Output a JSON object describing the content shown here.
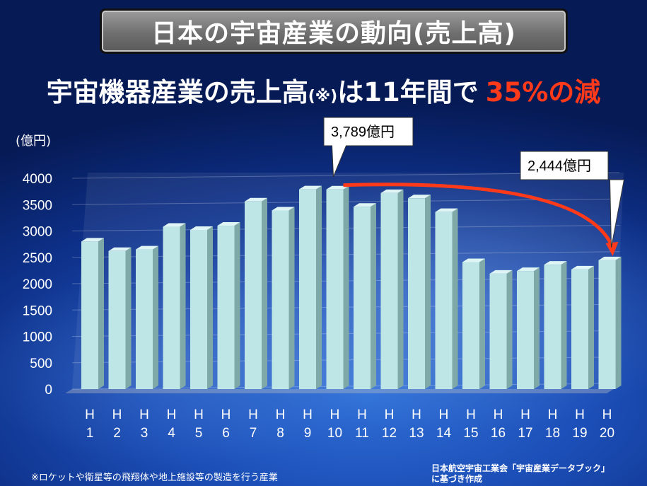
{
  "title": "日本の宇宙産業の動向(売上高)",
  "headline": {
    "main": "宇宙機器産業の売上高",
    "note_mark": "(※)",
    "mid": "は11年間で",
    "highlight": "35%の減"
  },
  "footnote": "※ロケットや衛星等の飛翔体や地上施設等の製造を行う産業",
  "source": "日本航空宇宙工業会「宇宙産業データブック」に基づき作成",
  "colors": {
    "bar": "#bfe6e6",
    "arrow": "#ff3a1a",
    "callout": "#ffffff"
  },
  "chart_data": {
    "type": "bar",
    "ylabel": "(億円)",
    "ylim": [
      0,
      4000
    ],
    "yticks": [
      0,
      500,
      1000,
      1500,
      2000,
      2500,
      3000,
      3500,
      4000
    ],
    "categories": [
      [
        "H",
        "1"
      ],
      [
        "H",
        "2"
      ],
      [
        "H",
        "3"
      ],
      [
        "H",
        "4"
      ],
      [
        "H",
        "5"
      ],
      [
        "H",
        "6"
      ],
      [
        "H",
        "7"
      ],
      [
        "H",
        "8"
      ],
      [
        "H",
        "9"
      ],
      [
        "H",
        "10"
      ],
      [
        "H",
        "11"
      ],
      [
        "H",
        "12"
      ],
      [
        "H",
        "13"
      ],
      [
        "H",
        "14"
      ],
      [
        "H",
        "15"
      ],
      [
        "H",
        "16"
      ],
      [
        "H",
        "17"
      ],
      [
        "H",
        "18"
      ],
      [
        "H",
        "19"
      ],
      [
        "H",
        "20"
      ]
    ],
    "values": [
      2800,
      2620,
      2650,
      3080,
      3020,
      3100,
      3560,
      3390,
      3790,
      3789,
      3460,
      3720,
      3620,
      3360,
      2410,
      2190,
      2240,
      2360,
      2270,
      2444
    ],
    "annotations": [
      {
        "category_index": 9,
        "label": "3,789億円"
      },
      {
        "category_index": 19,
        "label": "2,444億円"
      }
    ]
  }
}
